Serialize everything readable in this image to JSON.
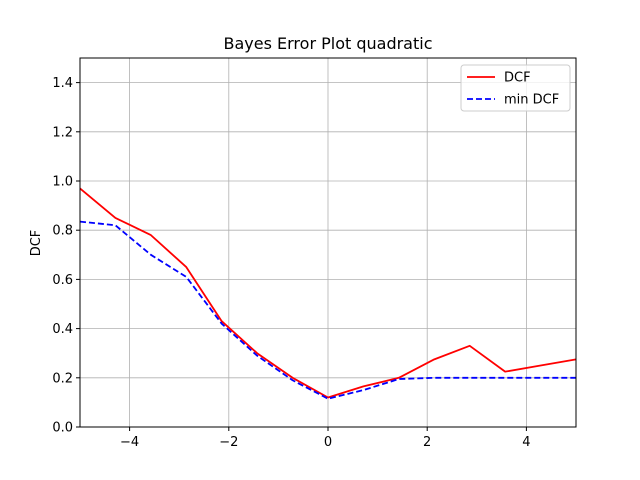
{
  "chart_data": {
    "type": "line",
    "title": "Bayes Error Plot quadratic",
    "xlabel": "",
    "ylabel": "DCF",
    "xlim": [
      -5,
      5
    ],
    "ylim": [
      0,
      1.5
    ],
    "xticks": [
      -4,
      -2,
      0,
      2,
      4
    ],
    "xtick_labels": [
      "−4",
      "−2",
      "0",
      "2",
      "4"
    ],
    "yticks": [
      0.0,
      0.2,
      0.4,
      0.6,
      0.8,
      1.0,
      1.2,
      1.4
    ],
    "ytick_labels": [
      "0.0",
      "0.2",
      "0.4",
      "0.6",
      "0.8",
      "1.0",
      "1.2",
      "1.4"
    ],
    "grid": true,
    "legend_position": "top-right",
    "x": [
      -5.0,
      -4.286,
      -3.571,
      -2.857,
      -2.143,
      -1.429,
      -0.714,
      0.0,
      0.714,
      1.429,
      2.143,
      2.857,
      3.571,
      4.286,
      5.0
    ],
    "series": [
      {
        "name": "DCF",
        "color": "#ff0000",
        "style": "solid",
        "values": [
          0.97,
          0.85,
          0.78,
          0.65,
          0.43,
          0.3,
          0.2,
          0.12,
          0.165,
          0.2,
          0.275,
          0.33,
          0.225,
          0.25,
          0.275
        ]
      },
      {
        "name": "min DCF",
        "color": "#0000ff",
        "style": "dashed",
        "values": [
          0.835,
          0.82,
          0.7,
          0.61,
          0.42,
          0.29,
          0.19,
          0.115,
          0.15,
          0.195,
          0.2,
          0.2,
          0.2,
          0.2,
          0.2
        ]
      }
    ]
  }
}
